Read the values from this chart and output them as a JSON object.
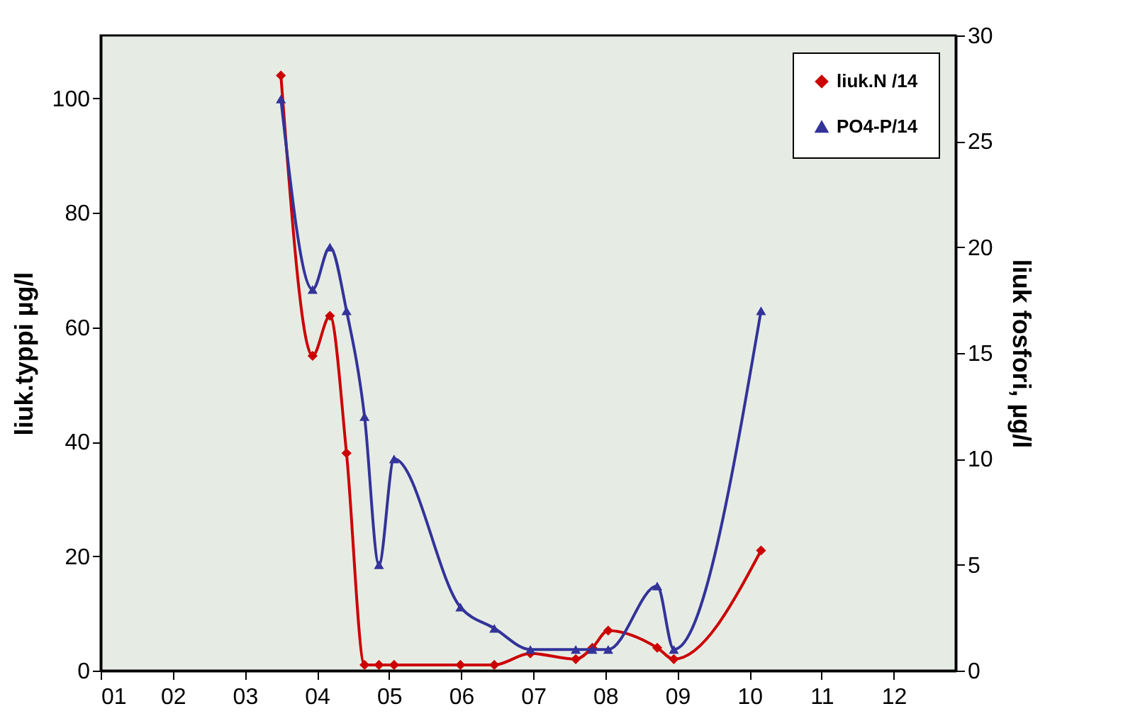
{
  "chart_data": {
    "type": "line",
    "ylabel": "liuk.typpi µg/l",
    "y2label": "liuk fosfori, µg/l",
    "x": [
      3.5,
      3.94,
      4.18,
      4.41,
      4.66,
      4.86,
      5.07,
      5.99,
      6.46,
      6.96,
      7.59,
      7.82,
      8.04,
      8.72,
      8.95,
      10.16
    ],
    "series": [
      {
        "name": "liuk.N /14",
        "color": "#cc0000",
        "marker": "diamond",
        "values": [
          104,
          55,
          62,
          38,
          1,
          1,
          1,
          1,
          1,
          3,
          2,
          4,
          7,
          4,
          2,
          21
        ]
      },
      {
        "name": "PO4-P/14",
        "color": "#333399",
        "marker": "triangle",
        "axis": "y2",
        "values": [
          27,
          18,
          20,
          17,
          12,
          5,
          10,
          3,
          2,
          1,
          1,
          1,
          1,
          4,
          1,
          17
        ]
      }
    ],
    "xlim": [
      1,
      12.86
    ],
    "xticks": [
      {
        "value": 1,
        "label": "01"
      },
      {
        "value": 2,
        "label": "02"
      },
      {
        "value": 3,
        "label": "03"
      },
      {
        "value": 4,
        "label": "04"
      },
      {
        "value": 5,
        "label": "05"
      },
      {
        "value": 6,
        "label": "06"
      },
      {
        "value": 7,
        "label": "07"
      },
      {
        "value": 8,
        "label": "08"
      },
      {
        "value": 9,
        "label": "09"
      },
      {
        "value": 10,
        "label": "10"
      },
      {
        "value": 11,
        "label": "11"
      },
      {
        "value": 12,
        "label": "12"
      }
    ],
    "ylim": [
      0,
      111
    ],
    "yticks": [
      0,
      20,
      40,
      60,
      80,
      100
    ],
    "y2lim": [
      0,
      30
    ],
    "y2ticks": [
      0,
      5,
      10,
      15,
      20,
      25,
      30
    ],
    "legend": "top right",
    "grid": false
  }
}
